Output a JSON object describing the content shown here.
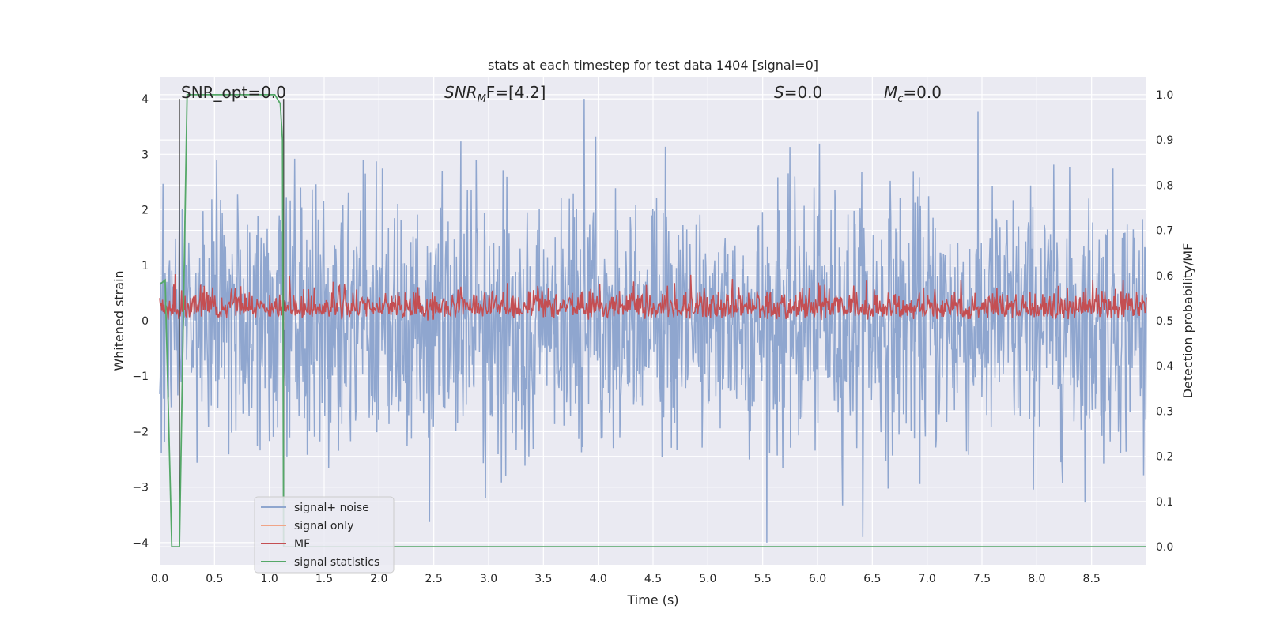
{
  "chart_data": {
    "type": "line",
    "title": "stats at each timestep for test data 1404 [signal=0]",
    "xlabel": "Time (s)",
    "ylabel_left": "Whitened strain",
    "ylabel_right": "Detection probability/MF",
    "xlim": [
      0.0,
      9.0
    ],
    "ylim_left": [
      -4.4,
      4.4
    ],
    "ylim_right": [
      -0.04,
      1.04
    ],
    "x_ticks": [
      "0.0",
      "0.5",
      "1.0",
      "1.5",
      "2.0",
      "2.5",
      "3.0",
      "3.5",
      "4.0",
      "4.5",
      "5.0",
      "5.5",
      "6.0",
      "6.5",
      "7.0",
      "7.5",
      "8.0",
      "8.5"
    ],
    "y_ticks_left": [
      "−4",
      "−3",
      "−2",
      "−1",
      "0",
      "1",
      "2",
      "3",
      "4"
    ],
    "y_ticks_right": [
      "0.0",
      "0.1",
      "0.2",
      "0.3",
      "0.4",
      "0.5",
      "0.6",
      "0.7",
      "0.8",
      "0.9",
      "1.0"
    ],
    "grid": true,
    "legend_placement": "lower-left",
    "annotations": {
      "snr_opt": "SNR_opt=0.0",
      "snr_mf_prefix": "SNR",
      "snr_mf_sub": "M",
      "snr_mf_suffix": "F=[4.2]",
      "s_italic": "S",
      "s_value": "=0.0",
      "mc_italic": "M",
      "mc_sub": "c",
      "mc_value": "=0.0"
    },
    "series": [
      {
        "name": "signal+ noise",
        "color": "#8fa6cf",
        "description_range": [
          -4.0,
          4.0
        ]
      },
      {
        "name": "signal only",
        "color": "#f0a487"
      },
      {
        "name": "MF",
        "color": "#c44e52"
      },
      {
        "name": "signal statistics",
        "color": "#55a868",
        "x": [
          0.0,
          0.05,
          0.11,
          0.13,
          0.18,
          0.25,
          1.05,
          1.1,
          1.12,
          1.13,
          1.17,
          1.2,
          9.0
        ],
        "y": [
          0.58,
          0.59,
          0.0,
          0.0,
          0.0,
          1.0,
          1.0,
          0.98,
          0.9,
          0.0,
          0.0,
          0.0,
          0.0
        ]
      }
    ],
    "vlines_x": [
      0.18,
      1.13
    ],
    "colors": {
      "background": "#eaeaf2",
      "grid": "#ffffff",
      "vline": "#4a4a4a"
    }
  }
}
